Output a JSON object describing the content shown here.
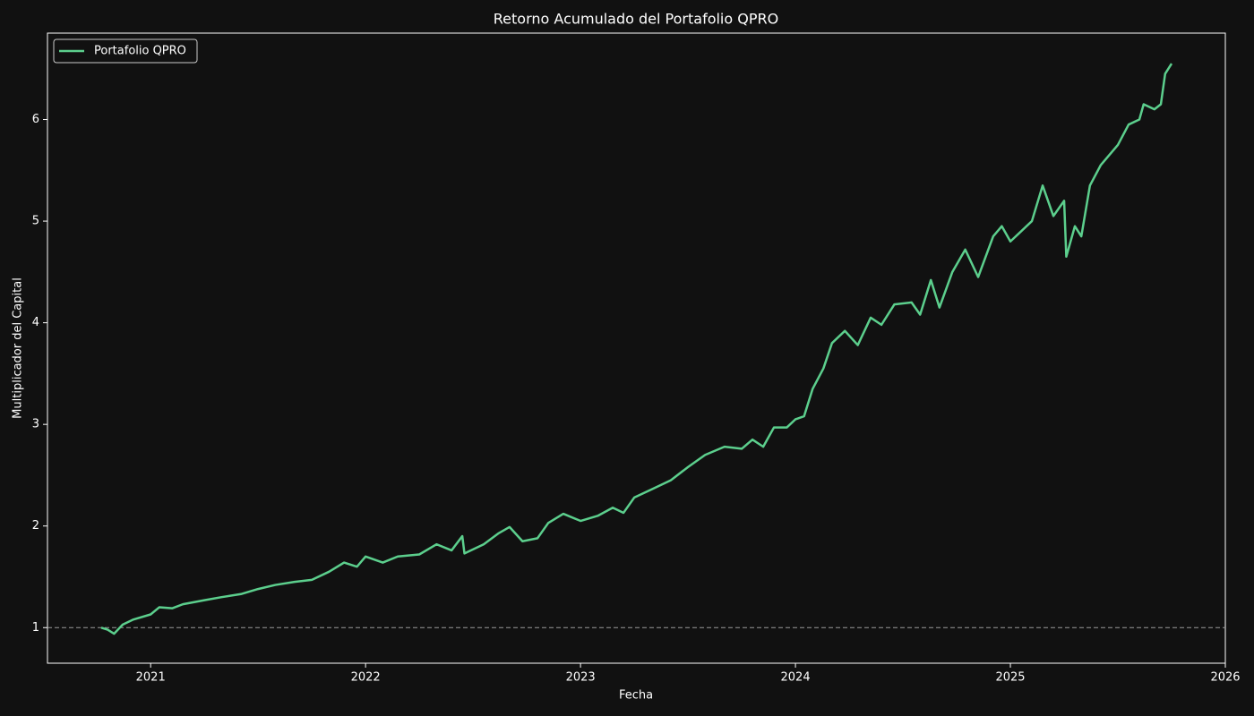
{
  "chart_data": {
    "type": "line",
    "title": "Retorno Acumulado del Portafolio QPRO",
    "xlabel": "Fecha",
    "ylabel": "Multiplicador del Capital",
    "x": [
      2020.77,
      2020.8,
      2020.83,
      2020.87,
      2020.92,
      2021.0,
      2021.04,
      2021.1,
      2021.15,
      2021.25,
      2021.33,
      2021.42,
      2021.5,
      2021.58,
      2021.67,
      2021.75,
      2021.83,
      2021.9,
      2021.96,
      2022.0,
      2022.08,
      2022.15,
      2022.25,
      2022.33,
      2022.4,
      2022.45,
      2022.46,
      2022.55,
      2022.62,
      2022.67,
      2022.73,
      2022.8,
      2022.85,
      2022.92,
      2023.0,
      2023.08,
      2023.15,
      2023.2,
      2023.25,
      2023.33,
      2023.42,
      2023.5,
      2023.58,
      2023.67,
      2023.75,
      2023.8,
      2023.85,
      2023.9,
      2023.96,
      2024.0,
      2024.04,
      2024.08,
      2024.13,
      2024.17,
      2024.23,
      2024.29,
      2024.35,
      2024.4,
      2024.46,
      2024.54,
      2024.58,
      2024.63,
      2024.67,
      2024.73,
      2024.79,
      2024.85,
      2024.92,
      2024.96,
      2025.0,
      2025.05,
      2025.1,
      2025.15,
      2025.2,
      2025.25,
      2025.26,
      2025.3,
      2025.33,
      2025.37,
      2025.42,
      2025.5,
      2025.55,
      2025.6,
      2025.62,
      2025.67,
      2025.7,
      2025.72,
      2025.75
    ],
    "series": [
      {
        "name": "Portafolio QPRO",
        "color": "#5ccf8d",
        "values": [
          1.0,
          0.98,
          0.94,
          1.03,
          1.08,
          1.13,
          1.2,
          1.19,
          1.23,
          1.27,
          1.3,
          1.33,
          1.38,
          1.42,
          1.45,
          1.47,
          1.55,
          1.64,
          1.6,
          1.7,
          1.64,
          1.7,
          1.72,
          1.82,
          1.76,
          1.9,
          1.73,
          1.82,
          1.93,
          1.99,
          1.85,
          1.88,
          2.03,
          2.12,
          2.05,
          2.1,
          2.18,
          2.13,
          2.28,
          2.36,
          2.45,
          2.58,
          2.7,
          2.78,
          2.76,
          2.85,
          2.78,
          2.97,
          2.97,
          3.05,
          3.08,
          3.35,
          3.55,
          3.8,
          3.92,
          3.78,
          4.05,
          3.98,
          4.18,
          4.2,
          4.08,
          4.42,
          4.15,
          4.5,
          4.72,
          4.45,
          4.85,
          4.95,
          4.8,
          4.9,
          5.0,
          5.35,
          5.05,
          5.2,
          4.65,
          4.95,
          4.85,
          5.35,
          5.55,
          5.75,
          5.95,
          6.0,
          6.15,
          6.1,
          6.15,
          6.45,
          6.55
        ]
      }
    ],
    "reference_line": 1,
    "xlim": [
      2020.52,
      2026.0
    ],
    "xticks": [
      2021,
      2022,
      2023,
      2024,
      2025,
      2026
    ],
    "ylim": [
      0.65,
      6.85
    ],
    "yticks": [
      1,
      2,
      3,
      4,
      5,
      6
    ],
    "legend": "upper left"
  }
}
